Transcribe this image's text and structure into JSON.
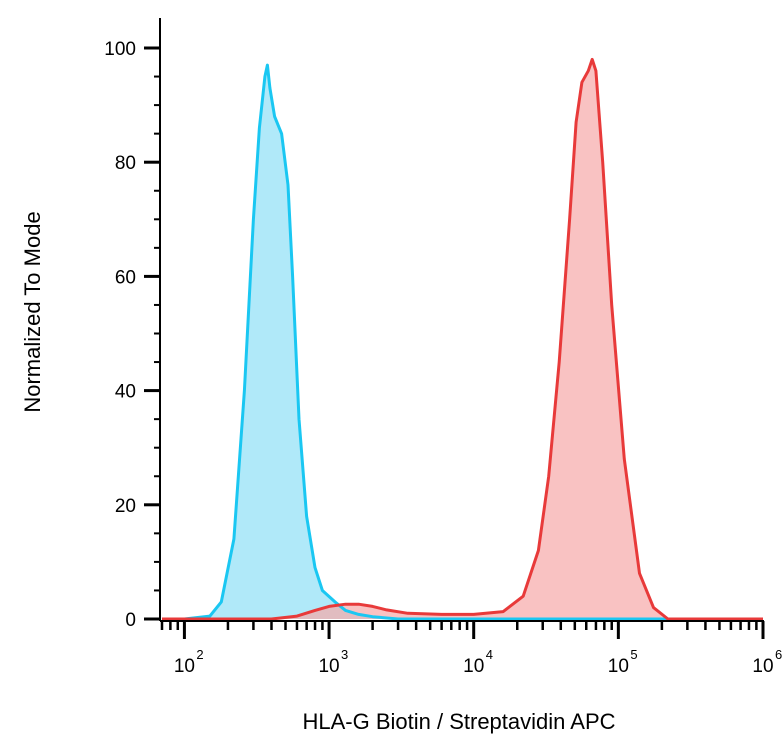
{
  "chart_data": {
    "type": "area",
    "title": "",
    "xlabel": "HLA-G Biotin / Streptavidin APC",
    "ylabel": "Normalized To Mode",
    "x_scale": "log",
    "xlim": [
      70,
      1000000
    ],
    "ylim": [
      0,
      100
    ],
    "y_ticks": [
      "0",
      "20",
      "40",
      "60",
      "80",
      "100"
    ],
    "x_ticks": [
      {
        "base": "10",
        "exp": "2"
      },
      {
        "base": "10",
        "exp": "3"
      },
      {
        "base": "10",
        "exp": "4"
      },
      {
        "base": "10",
        "exp": "5"
      },
      {
        "base": "10",
        "exp": "6"
      }
    ],
    "grid": false,
    "legend": "none",
    "series": [
      {
        "color": "#1ac7f2",
        "fill": "#8fdff7",
        "points": [
          [
            70,
            0
          ],
          [
            100,
            0
          ],
          [
            150,
            0.5
          ],
          [
            180,
            3
          ],
          [
            220,
            14
          ],
          [
            260,
            40
          ],
          [
            300,
            70
          ],
          [
            330,
            86
          ],
          [
            360,
            95
          ],
          [
            375,
            97
          ],
          [
            390,
            93
          ],
          [
            420,
            88
          ],
          [
            470,
            85
          ],
          [
            520,
            76
          ],
          [
            560,
            60
          ],
          [
            620,
            35
          ],
          [
            700,
            18
          ],
          [
            800,
            9
          ],
          [
            900,
            5
          ],
          [
            1100,
            3
          ],
          [
            1300,
            1.5
          ],
          [
            1600,
            0.8
          ],
          [
            2000,
            0.4
          ],
          [
            3000,
            0
          ],
          [
            1000000,
            0
          ]
        ]
      },
      {
        "color": "#e83a3a",
        "fill": "#f7a8a8",
        "points": [
          [
            70,
            0
          ],
          [
            400,
            0
          ],
          [
            600,
            0.5
          ],
          [
            800,
            1.5
          ],
          [
            1000,
            2.2
          ],
          [
            1300,
            2.6
          ],
          [
            1600,
            2.6
          ],
          [
            2000,
            2.2
          ],
          [
            2500,
            1.6
          ],
          [
            3500,
            1
          ],
          [
            6000,
            0.8
          ],
          [
            10000,
            0.8
          ],
          [
            16000,
            1.3
          ],
          [
            22000,
            4
          ],
          [
            28000,
            12
          ],
          [
            33000,
            25
          ],
          [
            39000,
            45
          ],
          [
            46000,
            70
          ],
          [
            51000,
            87
          ],
          [
            56000,
            94
          ],
          [
            62000,
            96
          ],
          [
            66000,
            98
          ],
          [
            70000,
            96
          ],
          [
            78000,
            80
          ],
          [
            90000,
            55
          ],
          [
            110000,
            28
          ],
          [
            140000,
            8
          ],
          [
            175000,
            2
          ],
          [
            220000,
            0
          ],
          [
            1000000,
            0
          ]
        ]
      }
    ]
  }
}
